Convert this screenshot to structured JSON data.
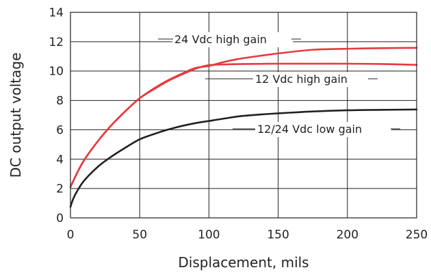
{
  "chart_data": {
    "type": "line",
    "title": "",
    "xlabel": "Displacement, mils",
    "ylabel": "DC output voltage",
    "xlim": [
      0,
      250
    ],
    "ylim": [
      0,
      14
    ],
    "xticks": [
      0,
      50,
      100,
      150,
      200,
      250
    ],
    "yticks": [
      0,
      2,
      4,
      6,
      8,
      10,
      12,
      14
    ],
    "grid": true,
    "series": [
      {
        "name": "24 Vdc high gain",
        "color": "#e8393c",
        "x": [
          0,
          5,
          10,
          20,
          30,
          40,
          50,
          60,
          70,
          80,
          90,
          100,
          110,
          120,
          130,
          150,
          175,
          200,
          225,
          250
        ],
        "y": [
          2.1,
          3.1,
          3.95,
          5.25,
          6.35,
          7.3,
          8.15,
          8.8,
          9.35,
          9.8,
          10.2,
          10.35,
          10.6,
          10.8,
          10.95,
          11.2,
          11.45,
          11.52,
          11.56,
          11.58
        ]
      },
      {
        "name": "12 Vdc high gain",
        "color": "#e8393c",
        "x": [
          0,
          5,
          10,
          20,
          30,
          40,
          50,
          60,
          70,
          80,
          90,
          95,
          100,
          110,
          125,
          150,
          175,
          200,
          225,
          250
        ],
        "y": [
          2.1,
          3.1,
          3.95,
          5.25,
          6.35,
          7.3,
          8.15,
          8.75,
          9.3,
          9.75,
          10.15,
          10.3,
          10.4,
          10.45,
          10.48,
          10.5,
          10.5,
          10.5,
          10.48,
          10.42
        ]
      },
      {
        "name": "12/24 Vdc low gain",
        "color": "#231f20",
        "x": [
          0,
          2,
          5,
          10,
          20,
          30,
          40,
          50,
          60,
          70,
          80,
          90,
          100,
          110,
          125,
          150,
          175,
          200,
          225,
          250
        ],
        "y": [
          0.75,
          1.3,
          1.85,
          2.55,
          3.5,
          4.2,
          4.8,
          5.35,
          5.7,
          6.0,
          6.25,
          6.45,
          6.6,
          6.75,
          6.95,
          7.12,
          7.25,
          7.33,
          7.36,
          7.38
        ]
      }
    ],
    "annotations": [
      {
        "text": "24 Vdc high gain",
        "series": 0
      },
      {
        "text": "12 Vdc high gain",
        "series": 1
      },
      {
        "text": "12/24 Vdc low gain",
        "series": 2
      }
    ]
  }
}
